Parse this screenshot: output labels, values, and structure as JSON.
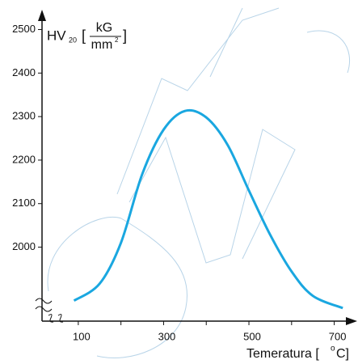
{
  "chart_data": {
    "type": "line",
    "ylabel": {
      "main": "HV",
      "sub": "20",
      "numerator": "kG",
      "denominator": "mm",
      "denominator_sup": "2",
      "open": "[",
      "close": "]"
    },
    "xlabel": {
      "before": "Temeratura [",
      "sup": "o",
      "after": "C]"
    },
    "x": [
      90,
      150,
      200,
      250,
      300,
      350,
      400,
      450,
      500,
      550,
      600,
      650,
      720
    ],
    "series": [
      {
        "color": "#1aa7e0",
        "values": [
          1877,
          1916,
          2010,
          2168,
          2270,
          2313,
          2298,
          2235,
          2130,
          2028,
          1944,
          1888,
          1860
        ]
      }
    ],
    "xlim": [
      15,
      750
    ],
    "ylim": [
      1830,
      2540
    ],
    "xticks": [
      100,
      300,
      500,
      700
    ],
    "xminor_ticks": [
      200,
      400,
      600
    ],
    "yticks": [
      2000,
      2100,
      2200,
      2300,
      2400,
      2500
    ]
  }
}
